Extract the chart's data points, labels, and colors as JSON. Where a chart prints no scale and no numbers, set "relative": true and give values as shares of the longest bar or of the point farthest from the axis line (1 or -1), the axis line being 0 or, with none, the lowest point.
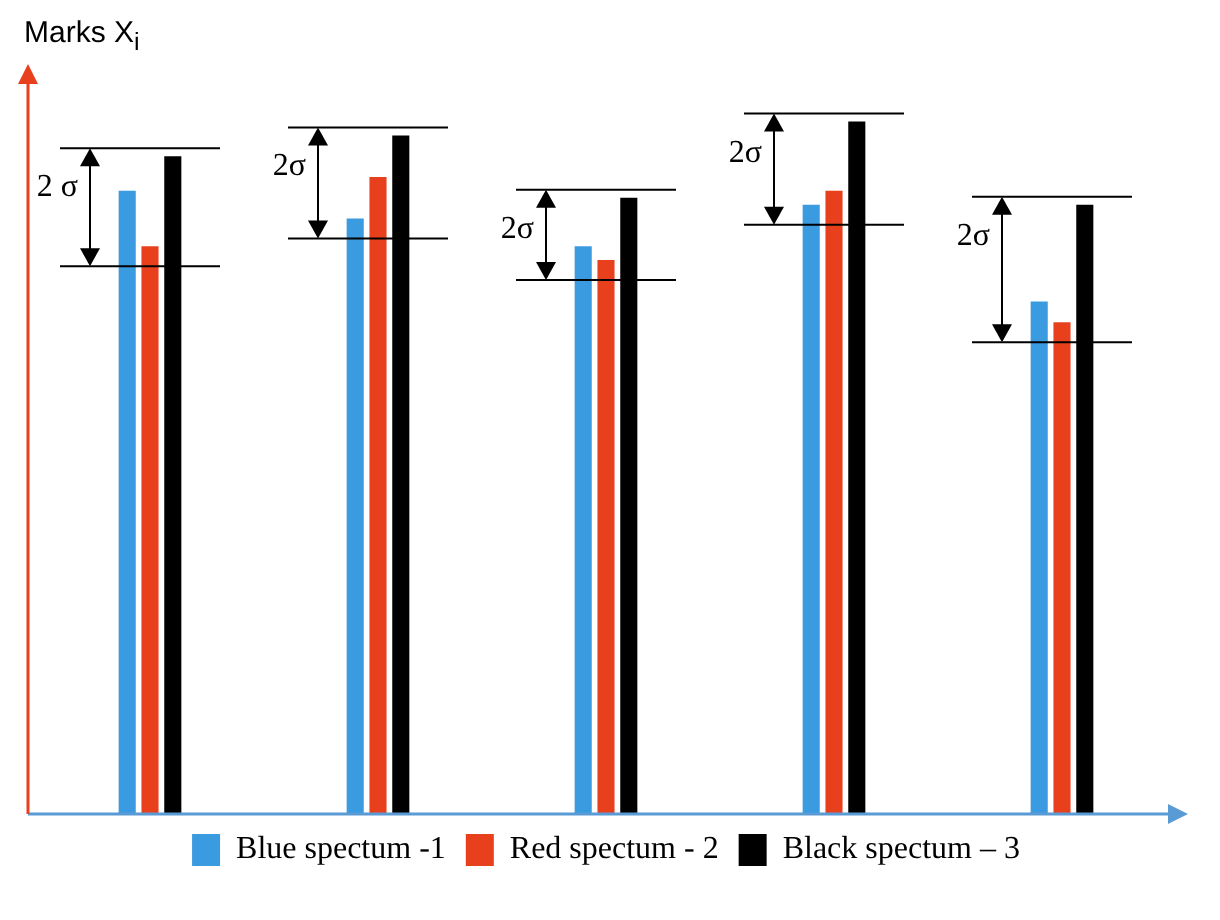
{
  "chart_data": {
    "type": "bar",
    "relative": true,
    "ylabel": "Marks X$_{i}$",
    "categories": [
      null,
      null,
      null,
      null,
      null
    ],
    "series": [
      {
        "name": "Blue spectum -1",
        "color": "#3b9be0",
        "values": [
          0.9,
          0.86,
          0.82,
          0.88,
          0.74
        ]
      },
      {
        "name": "Red spectum - 2",
        "color": "#e8401c",
        "values": [
          0.82,
          0.92,
          0.8,
          0.9,
          0.71
        ]
      },
      {
        "name": "Black spectum – 3",
        "color": "#000000",
        "values": [
          0.95,
          0.98,
          0.89,
          1,
          0.88
        ]
      }
    ],
    "annotations": [
      "2 σ",
      "2σ",
      "2σ",
      "2σ",
      "2σ"
    ],
    "legend": "bottom"
  }
}
